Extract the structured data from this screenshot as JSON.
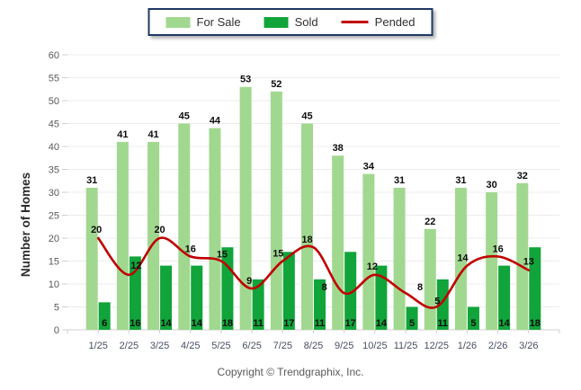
{
  "legend": {
    "border_color": "#1f3864",
    "items": [
      {
        "label": "For Sale",
        "swatch": "square",
        "color": "#a1d88f"
      },
      {
        "label": "Sold",
        "swatch": "square",
        "color": "#10a43a"
      },
      {
        "label": "Pended",
        "swatch": "line",
        "color": "#c00000"
      }
    ]
  },
  "footer": {
    "copyright": "Copyright © Trendgraphix, Inc."
  },
  "chart_data": {
    "type": "bar",
    "title": "",
    "categories": [
      "1/25",
      "2/25",
      "3/25",
      "4/25",
      "5/25",
      "6/25",
      "7/25",
      "8/25",
      "9/25",
      "10/25",
      "11/25",
      "12/25",
      "1/26",
      "2/26",
      "3/26"
    ],
    "series": [
      {
        "name": "For Sale",
        "type": "bar",
        "color": "#a1d88f",
        "values": [
          31,
          41,
          41,
          45,
          44,
          53,
          52,
          45,
          38,
          34,
          31,
          22,
          31,
          30,
          32
        ]
      },
      {
        "name": "Sold",
        "type": "bar",
        "color": "#10a43a",
        "values": [
          6,
          16,
          14,
          14,
          18,
          11,
          17,
          11,
          17,
          14,
          5,
          11,
          5,
          14,
          18
        ]
      },
      {
        "name": "Pended",
        "type": "line",
        "color": "#c00000",
        "values": [
          20,
          12,
          20,
          16,
          15,
          9,
          15,
          18,
          8,
          12,
          8,
          5,
          14,
          16,
          13
        ]
      }
    ],
    "xlabel": "",
    "ylabel": "Number of Homes",
    "ylim": [
      0,
      60
    ],
    "ytick_step": 5,
    "grid": true,
    "legend_position": "top",
    "value_labels": true
  }
}
